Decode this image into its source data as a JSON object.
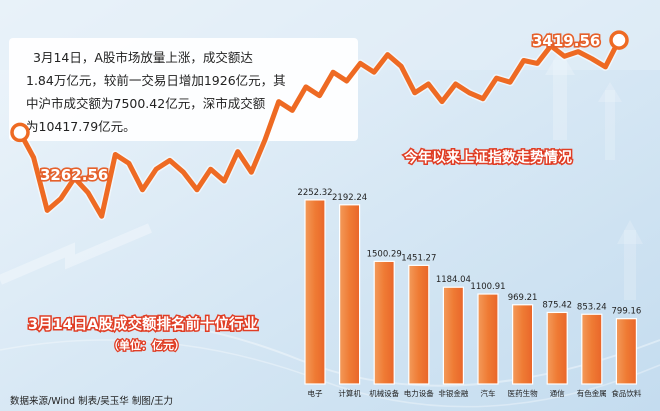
{
  "colors": {
    "accent": "#ee6a23",
    "bar": "#ef7b34",
    "bar_light": "#f6a46b",
    "headline": "#e03d24",
    "background": "#dcebf6"
  },
  "info_box": {
    "lines": [
      "3月14日，A股市场放量上涨，成交额达",
      "1.84万亿元，较前一交易日增加1926亿元，其",
      "中沪市成交额为7500.42亿元，深市成交额",
      "为10417.79亿元。"
    ]
  },
  "footer": {
    "credit": "数据来源/Wind  制表/吴玉华  制图/王力"
  },
  "chart_data": [
    {
      "type": "line",
      "title": "今年以来上证指数走势情况",
      "start_label": "3262.56",
      "end_label": "3419.56",
      "values": [
        3262.56,
        3220,
        3130,
        3150,
        3185,
        3160,
        3120,
        3225,
        3210,
        3165,
        3200,
        3215,
        3195,
        3165,
        3200,
        3180,
        3230,
        3195,
        3250,
        3315,
        3300,
        3340,
        3325,
        3365,
        3350,
        3380,
        3365,
        3395,
        3375,
        3330,
        3345,
        3315,
        3345,
        3330,
        3320,
        3355,
        3348,
        3385,
        3380,
        3410,
        3392,
        3400,
        3388,
        3374,
        3419.56
      ]
    },
    {
      "type": "bar",
      "title": "3月14日A股成交额排名前十位行业",
      "unit": "（单位：亿元）",
      "categories": [
        "电子",
        "计算机",
        "机械设备",
        "电力设备",
        "非银金融",
        "汽车",
        "医药生物",
        "通信",
        "有色金属",
        "食品饮料"
      ],
      "values": [
        2252.32,
        2192.24,
        1500.29,
        1451.27,
        1184.04,
        1100.91,
        969.21,
        875.42,
        853.24,
        799.16
      ],
      "value_labels": [
        "2252.32",
        "2192.24",
        "1500.29",
        "1451.27",
        "1184.04",
        "1100.91",
        "969.21",
        "875.42",
        "853.24",
        "799.16"
      ]
    }
  ]
}
